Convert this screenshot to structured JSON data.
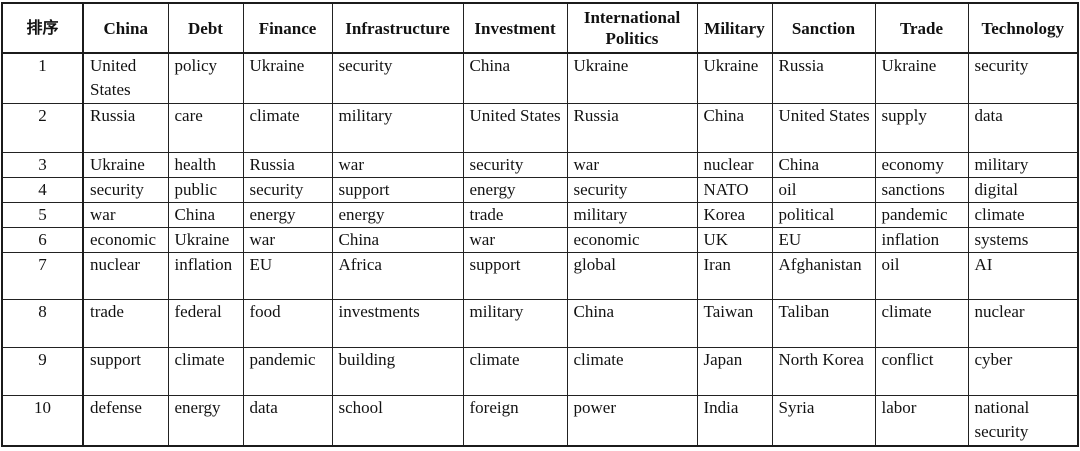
{
  "table": {
    "rank_header": "排序",
    "columns": [
      "China",
      "Debt",
      "Finance",
      "Infrastructure",
      "Investment",
      "International Politics",
      "Military",
      "Sanction",
      "Trade",
      "Technology"
    ],
    "rows": [
      {
        "rank": "1",
        "cells": [
          "United States",
          "policy",
          "Ukraine",
          "security",
          "China",
          "Ukraine",
          "Ukraine",
          "Russia",
          "Ukraine",
          "security"
        ]
      },
      {
        "rank": "2",
        "cells": [
          "Russia",
          "care",
          "climate",
          "military",
          "United States",
          "Russia",
          "China",
          "United States",
          "supply",
          "data"
        ]
      },
      {
        "rank": "3",
        "cells": [
          "Ukraine",
          "health",
          "Russia",
          "war",
          "security",
          "war",
          "nuclear",
          "China",
          "economy",
          "military"
        ]
      },
      {
        "rank": "4",
        "cells": [
          "security",
          "public",
          "security",
          "support",
          "energy",
          "security",
          "NATO",
          "oil",
          "sanctions",
          "digital"
        ]
      },
      {
        "rank": "5",
        "cells": [
          "war",
          "China",
          "energy",
          "energy",
          "trade",
          "military",
          "Korea",
          "political",
          "pandemic",
          "climate"
        ]
      },
      {
        "rank": "6",
        "cells": [
          "economic",
          "Ukraine",
          "war",
          "China",
          "war",
          "economic",
          "UK",
          "EU",
          "inflation",
          "systems"
        ]
      },
      {
        "rank": "7",
        "cells": [
          "nuclear",
          "inflation",
          "EU",
          "Africa",
          "support",
          "global",
          "Iran",
          "Afghanistan",
          "oil",
          "AI"
        ]
      },
      {
        "rank": "8",
        "cells": [
          "trade",
          "federal",
          "food",
          "investments",
          "military",
          "China",
          "Taiwan",
          "Taliban",
          "climate",
          "nuclear"
        ]
      },
      {
        "rank": "9",
        "cells": [
          "support",
          "climate",
          "pandemic",
          "building",
          "climate",
          "climate",
          "Japan",
          "North Korea",
          "conflict",
          "cyber"
        ]
      },
      {
        "rank": "10",
        "cells": [
          "defense",
          "energy",
          "data",
          "school",
          "foreign",
          "power",
          "India",
          "Syria",
          "labor",
          "national security"
        ]
      }
    ]
  },
  "colors": {
    "border": "#1b1b1b",
    "text": "#121212",
    "background": "#ffffff"
  }
}
